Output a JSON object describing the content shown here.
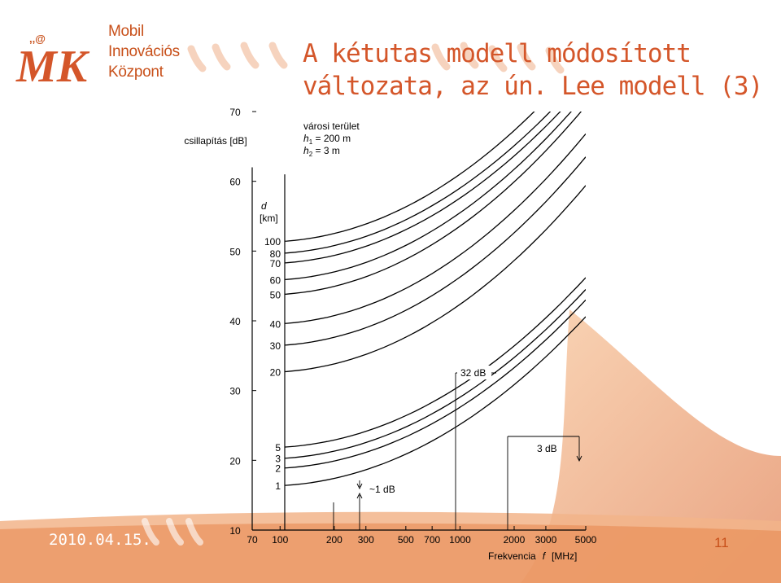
{
  "slide": {
    "title_line1": "A kétutas modell módosított",
    "title_line2": "változata, az ún. Lee modell (3)",
    "date": "2010.04.15.",
    "page": "11",
    "logo": {
      "line1": "Mobil",
      "line2": "Innovációs",
      "line3": "Központ",
      "mark": "MK"
    },
    "accent": "#e07028",
    "title_color": "#d4562a"
  },
  "chart_data": {
    "type": "line",
    "title": "",
    "ylabel": "csillapítás [dB]",
    "xlabel_parts": [
      "Frekvencia",
      "f",
      "[MHz]"
    ],
    "x_scale": "log",
    "xlim": [
      70,
      5000
    ],
    "ylim": [
      10,
      70
    ],
    "x_ticks": [
      70,
      100,
      200,
      300,
      500,
      700,
      1000,
      2000,
      3000,
      5000
    ],
    "x_tick_labels": [
      "70",
      "100",
      "200",
      "300",
      "500",
      "700",
      "1000",
      "2000",
      "3000",
      "5000"
    ],
    "y_ticks": [
      10,
      20,
      30,
      40,
      50,
      60,
      70
    ],
    "y_tick_labels": [
      "10",
      "20",
      "30",
      "40",
      "50",
      "60",
      "70"
    ],
    "params": {
      "line1": "városi terület",
      "line2_sym": "h",
      "line2_sub": "1",
      "line2_val": " = 200 m",
      "line3_sym": "h",
      "line3_sub": "2",
      "line3_val": " = 3 m"
    },
    "curve_header": {
      "sym": "d",
      "unit": "[km]"
    },
    "series": [
      {
        "name": "100",
        "y_start": 51.3,
        "y_end": 78.0
      },
      {
        "name": "80",
        "y_start": 49.6,
        "y_end": 75.5
      },
      {
        "name": "70",
        "y_start": 48.2,
        "y_end": 74.0
      },
      {
        "name": "60",
        "y_start": 45.8,
        "y_end": 72.4
      },
      {
        "name": "50",
        "y_start": 43.7,
        "y_end": 70.8
      },
      {
        "name": "40",
        "y_start": 39.5,
        "y_end": 66.8
      },
      {
        "name": "30",
        "y_start": 36.4,
        "y_end": 63.5
      },
      {
        "name": "20",
        "y_start": 32.6,
        "y_end": 59.4
      },
      {
        "name": "5",
        "y_start": 21.8,
        "y_end": 46.2
      },
      {
        "name": "3",
        "y_start": 20.2,
        "y_end": 44.5
      },
      {
        "name": "2",
        "y_start": 18.8,
        "y_end": 43.0
      },
      {
        "name": "1",
        "y_start": 16.3,
        "y_end": 40.6
      }
    ],
    "annotations": {
      "a32": "32 dB",
      "a3": "3 dB",
      "a1": "~1 dB"
    }
  }
}
